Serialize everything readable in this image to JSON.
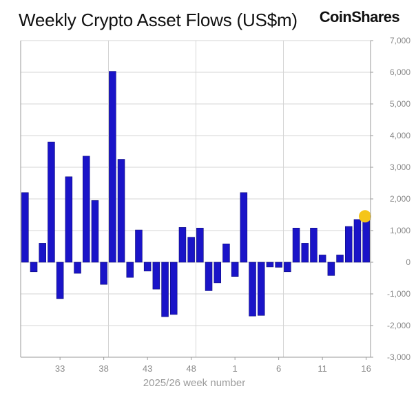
{
  "header": {
    "title": "Weekly Crypto Asset Flows (US$m)",
    "brand": "CoinShares"
  },
  "colors": {
    "bar": "#1a14c8",
    "bar_stroke": "#0c0a7a",
    "highlight": "#f5c518",
    "grid": "#d4d4d4",
    "border": "#9a9a9a"
  },
  "chart_data": {
    "type": "bar",
    "title": "Weekly Crypto Asset Flows (US$m)",
    "xlabel": "2025/26 week number",
    "ylabel": "",
    "ylim": [
      -3000,
      7000
    ],
    "yticks": [
      7000,
      6000,
      5000,
      4000,
      3000,
      2000,
      1000,
      0,
      -1000,
      -2000,
      -3000
    ],
    "ytick_labels": [
      "7,000",
      "6,000",
      "5,000",
      "4,000",
      "3,000",
      "2,000",
      "1,000",
      "0",
      "-1,000",
      "-2,000",
      "-3,000"
    ],
    "grid": true,
    "categories": [
      "29",
      "30",
      "31",
      "32",
      "33",
      "34",
      "35",
      "36",
      "37",
      "38",
      "39",
      "40",
      "41",
      "42",
      "43",
      "44",
      "45",
      "46",
      "47",
      "48",
      "49",
      "50",
      "51",
      "52",
      "1",
      "2",
      "3",
      "4",
      "5",
      "6",
      "7",
      "8",
      "9",
      "10",
      "11",
      "12",
      "13",
      "14",
      "15",
      "16"
    ],
    "xtick_labels": [
      "33",
      "38",
      "43",
      "48",
      "1",
      "6",
      "11",
      "16"
    ],
    "x_gridlines_at": [
      "38",
      "48",
      "6"
    ],
    "values": [
      2200,
      -300,
      600,
      3800,
      -1150,
      2700,
      -350,
      3350,
      1950,
      -700,
      6030,
      3250,
      -480,
      1020,
      -280,
      -850,
      -1720,
      -1650,
      1100,
      790,
      1080,
      -900,
      -650,
      580,
      -450,
      2200,
      -1700,
      -1680,
      -150,
      -160,
      -300,
      1080,
      600,
      1080,
      230,
      -420,
      230,
      1130,
      1350,
      1450
    ],
    "highlight": {
      "category": "16",
      "value": 1450
    }
  }
}
